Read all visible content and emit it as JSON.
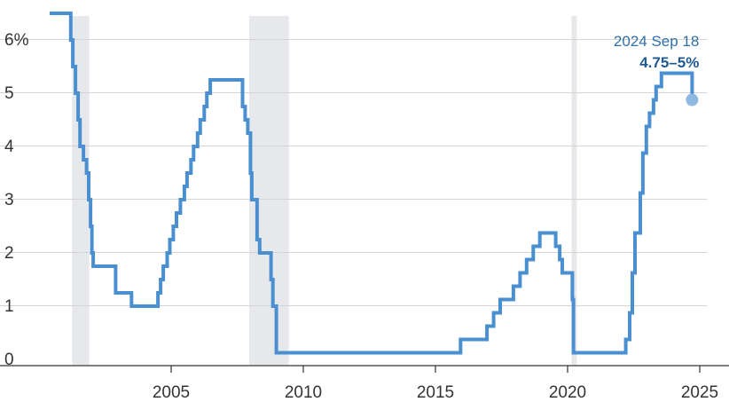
{
  "chart_data": {
    "type": "line",
    "step": true,
    "x_unit": "year",
    "y_unit": "%",
    "xlim": [
      2000.4,
      2025.4
    ],
    "ylim": [
      0,
      6.5
    ],
    "x_ticks": [
      2005,
      2010,
      2015,
      2020,
      2025
    ],
    "x_tick_labels": [
      "2005",
      "2010",
      "2015",
      "2020",
      "2025"
    ],
    "y_ticks": [
      0,
      1,
      2,
      3,
      4,
      5,
      6
    ],
    "y_tick_labels": [
      "0",
      "1",
      "2",
      "3",
      "4",
      "5",
      "6%"
    ],
    "grid": {
      "horizontal": true,
      "vertical": false
    },
    "legend": "none",
    "colors": {
      "line": "#4a90d0",
      "recession": "#e7e8eb",
      "grid": "#d5d5d5",
      "end_marker": "#8fb9e3"
    },
    "recessions": [
      {
        "start": 2001.25,
        "end": 2001.9
      },
      {
        "start": 2007.95,
        "end": 2009.45
      },
      {
        "start": 2020.15,
        "end": 2020.35
      }
    ],
    "series": [
      {
        "values": [
          [
            2001.15,
            6.5
          ],
          [
            2001.2,
            6.0
          ],
          [
            2001.28,
            5.5
          ],
          [
            2001.38,
            5.0
          ],
          [
            2001.48,
            4.5
          ],
          [
            2001.55,
            4.0
          ],
          [
            2001.68,
            3.75
          ],
          [
            2001.8,
            3.5
          ],
          [
            2001.88,
            3.0
          ],
          [
            2001.95,
            2.5
          ],
          [
            2002.0,
            2.0
          ],
          [
            2002.05,
            1.75
          ],
          [
            2002.9,
            1.25
          ],
          [
            2003.5,
            1.0
          ],
          [
            2004.5,
            1.25
          ],
          [
            2004.6,
            1.5
          ],
          [
            2004.7,
            1.75
          ],
          [
            2004.85,
            2.0
          ],
          [
            2004.95,
            2.25
          ],
          [
            2005.08,
            2.5
          ],
          [
            2005.2,
            2.75
          ],
          [
            2005.35,
            3.0
          ],
          [
            2005.5,
            3.25
          ],
          [
            2005.6,
            3.5
          ],
          [
            2005.75,
            3.75
          ],
          [
            2005.85,
            4.0
          ],
          [
            2006.0,
            4.25
          ],
          [
            2006.1,
            4.5
          ],
          [
            2006.25,
            4.75
          ],
          [
            2006.35,
            5.0
          ],
          [
            2006.48,
            5.25
          ],
          [
            2007.7,
            4.75
          ],
          [
            2007.8,
            4.5
          ],
          [
            2007.9,
            4.25
          ],
          [
            2008.0,
            3.5
          ],
          [
            2008.05,
            3.0
          ],
          [
            2008.25,
            2.25
          ],
          [
            2008.35,
            2.0
          ],
          [
            2008.78,
            1.5
          ],
          [
            2008.85,
            1.0
          ],
          [
            2008.98,
            0.125
          ],
          [
            2015.95,
            0.375
          ],
          [
            2016.95,
            0.625
          ],
          [
            2017.2,
            0.875
          ],
          [
            2017.45,
            1.125
          ],
          [
            2017.95,
            1.375
          ],
          [
            2018.2,
            1.625
          ],
          [
            2018.45,
            1.875
          ],
          [
            2018.7,
            2.125
          ],
          [
            2018.95,
            2.375
          ],
          [
            2019.55,
            2.125
          ],
          [
            2019.7,
            1.875
          ],
          [
            2019.8,
            1.625
          ],
          [
            2020.18,
            1.125
          ],
          [
            2020.22,
            0.125
          ],
          [
            2022.2,
            0.375
          ],
          [
            2022.35,
            0.875
          ],
          [
            2022.45,
            1.625
          ],
          [
            2022.55,
            2.375
          ],
          [
            2022.75,
            3.125
          ],
          [
            2022.85,
            3.875
          ],
          [
            2022.98,
            4.375
          ],
          [
            2023.1,
            4.625
          ],
          [
            2023.25,
            4.875
          ],
          [
            2023.35,
            5.125
          ],
          [
            2023.55,
            5.375
          ],
          [
            2024.71,
            4.875
          ]
        ]
      }
    ],
    "annotations": [
      {
        "x": 2024.71,
        "y": 4.875,
        "label": "2024 Sep 18",
        "value_label": "4.75–5%"
      }
    ]
  }
}
